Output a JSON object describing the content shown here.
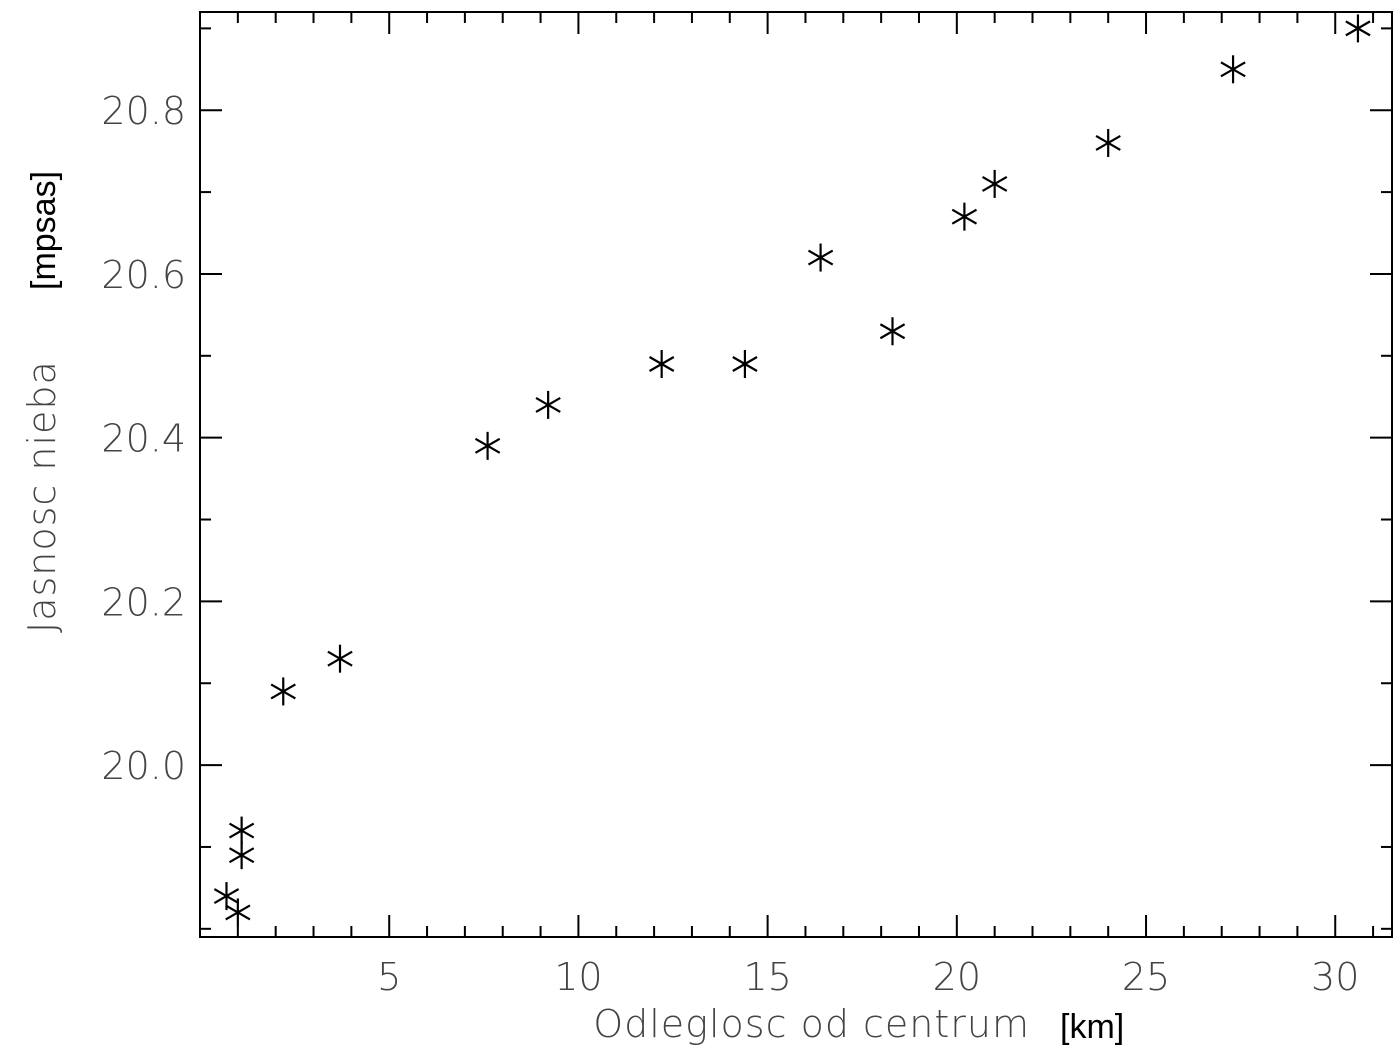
{
  "chart_data": {
    "type": "scatter",
    "title": "",
    "xlabel": "Odleglosc od centrum",
    "xlabel_unit": "[km]",
    "ylabel": "Jasnosc nieba",
    "ylabel_unit": "[mpsas]",
    "xlim": [
      0,
      31.5
    ],
    "ylim": [
      19.79,
      20.92
    ],
    "x_major_ticks": [
      5,
      10,
      15,
      20,
      25,
      30
    ],
    "x_tick_labels": [
      "5",
      "10",
      "15",
      "20",
      "25",
      "30"
    ],
    "x_minor_step": 1,
    "y_major_ticks": [
      20.0,
      20.2,
      20.4,
      20.6,
      20.8
    ],
    "y_tick_labels": [
      "20.0",
      "20.2",
      "20.4",
      "20.6",
      "20.8"
    ],
    "y_minor_step": 0.1,
    "grid": false,
    "marker": "asterisk",
    "series": [
      {
        "name": "",
        "x": [
          0.7,
          1.0,
          1.1,
          1.1,
          2.2,
          3.7,
          7.6,
          9.2,
          12.2,
          14.4,
          16.4,
          18.3,
          20.2,
          21.0,
          24.0,
          27.3,
          30.6
        ],
        "y": [
          19.84,
          19.82,
          19.89,
          19.92,
          20.09,
          20.13,
          20.39,
          20.44,
          20.49,
          20.49,
          20.62,
          20.53,
          20.67,
          20.71,
          20.76,
          20.85,
          20.9
        ]
      }
    ]
  }
}
